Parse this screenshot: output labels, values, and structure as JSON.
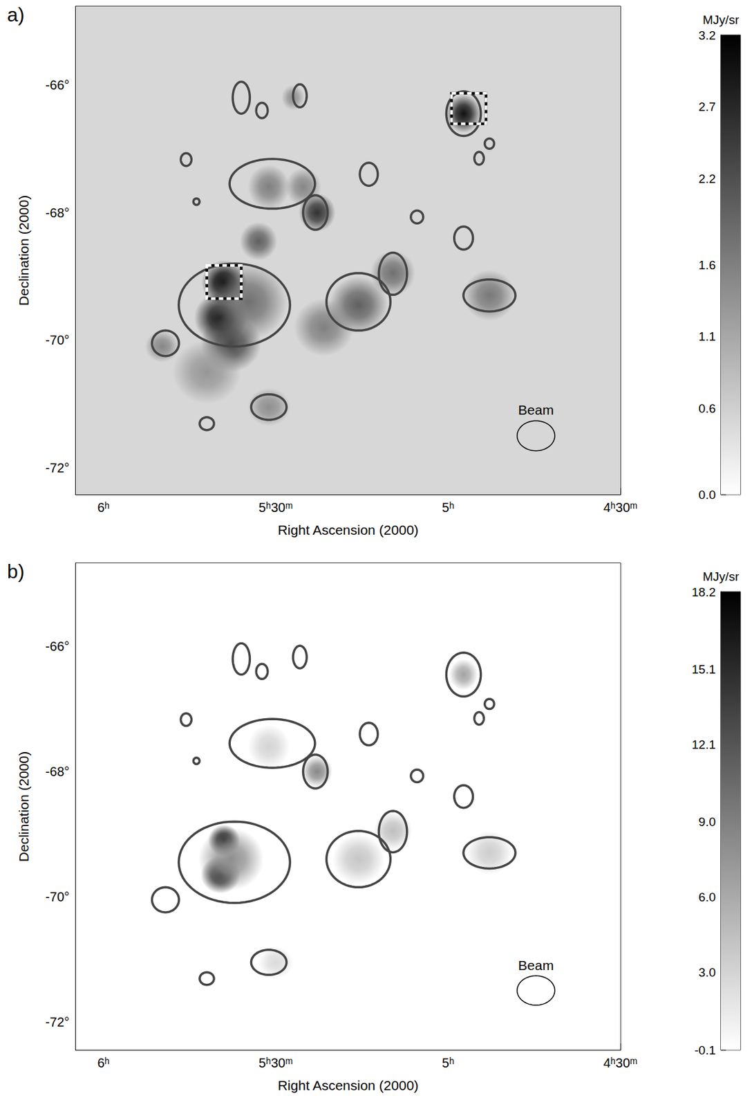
{
  "chart_data": [
    {
      "type": "map",
      "title": "a)",
      "x_label": "Right Ascension (2000)",
      "y_label": "Declination (2000)",
      "xlim": [
        6.08,
        4.5
      ],
      "xticks": [
        {
          "value": 6,
          "label": "6ʰ"
        },
        {
          "value": 5.5,
          "label": "5ʰ30ᵐ"
        },
        {
          "value": 5,
          "label": "5ʰ"
        },
        {
          "value": 4.5,
          "label": "4ʰ30ᵐ"
        }
      ],
      "ylim": [
        -72.42,
        -64.77
      ],
      "yticks": [
        {
          "value": -72,
          "label": "-72°"
        },
        {
          "value": -70,
          "label": "-70°"
        },
        {
          "value": -68,
          "label": "-68°"
        },
        {
          "value": -66,
          "label": "-66°"
        }
      ],
      "colorbar": {
        "label": "MJy/sr",
        "range": [
          0,
          3.2
        ],
        "ticks": [
          {
            "value": 0,
            "label": "0.0"
          },
          0.6,
          1.1,
          1.6,
          2.2,
          2.7,
          3.2
        ]
      },
      "background": 0.5,
      "sources": [
        [
          5.65,
          -69.1,
          3.2,
          0.35
        ],
        [
          5.66,
          -69.65,
          3.0,
          0.4
        ],
        [
          5.63,
          -70.05,
          2.3,
          0.45
        ],
        [
          5.58,
          -69.4,
          1.8,
          0.6
        ],
        [
          4.955,
          -66.45,
          3.0,
          0.3
        ],
        [
          5.38,
          -68.0,
          2.6,
          0.3
        ],
        [
          5.55,
          -68.45,
          2.0,
          0.3
        ],
        [
          5.52,
          -67.6,
          1.6,
          0.35
        ],
        [
          5.42,
          -67.6,
          1.5,
          0.3
        ],
        [
          5.26,
          -69.45,
          2.0,
          0.45
        ],
        [
          5.16,
          -68.95,
          1.8,
          0.35
        ],
        [
          4.88,
          -69.3,
          1.7,
          0.4
        ],
        [
          5.36,
          -69.8,
          1.6,
          0.45
        ],
        [
          5.52,
          -71.05,
          1.4,
          0.3
        ],
        [
          5.83,
          -70.1,
          1.5,
          0.25
        ],
        [
          5.45,
          -66.2,
          1.4,
          0.2
        ],
        [
          5.7,
          -70.5,
          1.3,
          0.5
        ]
      ],
      "regions": [
        [
          5.62,
          -69.45,
          0.85,
          0.65
        ],
        [
          5.51,
          -67.55,
          0.71,
          0.39
        ],
        [
          4.955,
          -66.45,
          0.3,
          0.35
        ],
        [
          5.385,
          -68.0,
          0.2,
          0.27
        ],
        [
          5.26,
          -69.4,
          0.49,
          0.45
        ],
        [
          5.16,
          -68.96,
          0.22,
          0.33
        ],
        [
          4.88,
          -69.3,
          0.4,
          0.25
        ],
        [
          5.82,
          -70.05,
          0.2,
          0.2
        ],
        [
          5.52,
          -71.05,
          0.25,
          0.2
        ],
        [
          5.7,
          -71.31,
          0.1,
          0.1
        ],
        [
          5.09,
          -68.07,
          0.1,
          0.1
        ],
        [
          5.23,
          -67.4,
          0.15,
          0.18
        ],
        [
          4.955,
          -68.4,
          0.15,
          0.18
        ],
        [
          4.91,
          -67.15,
          0.08,
          0.1
        ],
        [
          4.88,
          -66.92,
          0.08,
          0.08
        ],
        [
          5.6,
          -66.2,
          0.15,
          0.25
        ],
        [
          5.54,
          -66.4,
          0.1,
          0.12
        ],
        [
          5.43,
          -66.17,
          0.12,
          0.18
        ],
        [
          5.76,
          -67.17,
          0.09,
          0.1
        ],
        [
          5.73,
          -67.83,
          0.05,
          0.05
        ]
      ],
      "boxes": [
        [
          5.7,
          -68.83,
          5.6,
          -69.35
        ],
        [
          4.99,
          -66.13,
          4.89,
          -66.61
        ]
      ],
      "beam": {
        "label": "Beam",
        "ra": 4.745,
        "dec": -71.5,
        "rx": 0.26,
        "ry": 0.235
      }
    },
    {
      "type": "map",
      "title": "b)",
      "x_label": "Right Ascension (2000)",
      "y_label": "Declination (2000)",
      "xlim": [
        6.08,
        4.5
      ],
      "xticks": [
        {
          "value": 6,
          "label": "6ʰ"
        },
        {
          "value": 5.5,
          "label": "5ʰ30ᵐ"
        },
        {
          "value": 5,
          "label": "5ʰ"
        },
        {
          "value": 4.5,
          "label": "4ʰ30ᵐ"
        }
      ],
      "ylim": [
        -72.45,
        -64.67
      ],
      "yticks": [
        {
          "value": -72,
          "label": "-72°"
        },
        {
          "value": -70,
          "label": "-70°"
        },
        {
          "value": -68,
          "label": "-68°"
        },
        {
          "value": -66,
          "label": "-66°"
        }
      ],
      "colorbar": {
        "label": "MJy/sr",
        "range": [
          -0.1,
          18.2
        ],
        "ticks": [
          -0.1,
          {
            "value": 3,
            "label": "3.0"
          },
          {
            "value": 6,
            "label": "6.0"
          },
          {
            "value": 9,
            "label": "9.0"
          },
          12.1,
          15.1,
          18.2
        ]
      },
      "background": -0.1,
      "sources": [
        [
          5.65,
          -69.1,
          18.2,
          0.25
        ],
        [
          5.66,
          -69.65,
          16.5,
          0.3
        ],
        [
          5.63,
          -69.4,
          8,
          0.5
        ],
        [
          4.955,
          -66.45,
          6.5,
          0.25
        ],
        [
          5.38,
          -68.0,
          8.5,
          0.25
        ],
        [
          5.26,
          -69.4,
          4,
          0.4
        ],
        [
          5.16,
          -68.95,
          4.5,
          0.3
        ],
        [
          4.88,
          -69.3,
          3.5,
          0.35
        ],
        [
          5.52,
          -67.6,
          3,
          0.35
        ],
        [
          5.5,
          -71.05,
          2.5,
          0.25
        ]
      ],
      "regions": [
        [
          5.62,
          -69.45,
          0.85,
          0.65
        ],
        [
          5.51,
          -67.55,
          0.71,
          0.39
        ],
        [
          4.955,
          -66.45,
          0.3,
          0.35
        ],
        [
          5.385,
          -68.0,
          0.2,
          0.27
        ],
        [
          5.26,
          -69.4,
          0.49,
          0.45
        ],
        [
          5.16,
          -68.96,
          0.22,
          0.33
        ],
        [
          4.88,
          -69.3,
          0.4,
          0.25
        ],
        [
          5.82,
          -70.05,
          0.2,
          0.2
        ],
        [
          5.52,
          -71.05,
          0.25,
          0.2
        ],
        [
          5.7,
          -71.31,
          0.1,
          0.1
        ],
        [
          5.09,
          -68.07,
          0.1,
          0.1
        ],
        [
          5.23,
          -67.4,
          0.15,
          0.18
        ],
        [
          4.955,
          -68.4,
          0.15,
          0.18
        ],
        [
          4.91,
          -67.15,
          0.08,
          0.1
        ],
        [
          4.88,
          -66.92,
          0.08,
          0.08
        ],
        [
          5.6,
          -66.2,
          0.15,
          0.25
        ],
        [
          5.54,
          -66.4,
          0.1,
          0.12
        ],
        [
          5.43,
          -66.17,
          0.12,
          0.18
        ],
        [
          5.76,
          -67.17,
          0.09,
          0.1
        ],
        [
          5.73,
          -67.83,
          0.05,
          0.05
        ]
      ],
      "beam": {
        "label": "Beam",
        "ra": 4.745,
        "dec": -71.5,
        "rx": 0.26,
        "ry": 0.235
      }
    }
  ]
}
